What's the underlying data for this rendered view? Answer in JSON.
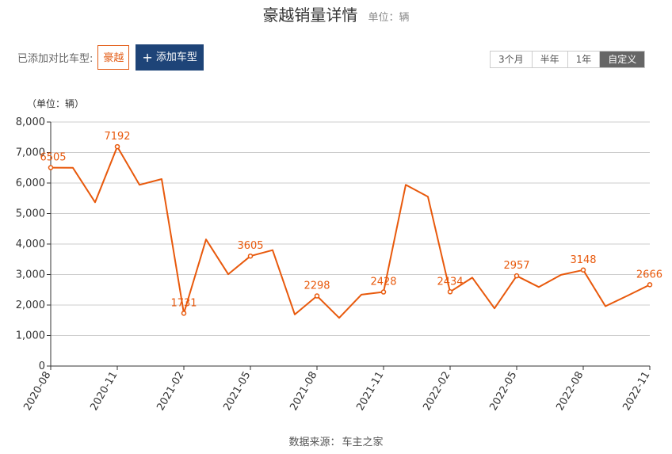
{
  "header": {
    "title": "豪越销量详情",
    "unit": "单位：辆"
  },
  "compare": {
    "label": "已添加对比车型:",
    "models": [
      "豪越"
    ],
    "add_label": "添加车型",
    "add_icon": "plus-icon"
  },
  "range_tabs": [
    {
      "label": "3个月",
      "active": false
    },
    {
      "label": "半年",
      "active": false
    },
    {
      "label": "1年",
      "active": false
    },
    {
      "label": "自定义",
      "active": true
    }
  ],
  "footer": {
    "source_label": "数据来源：",
    "source_value": "车主之家"
  },
  "colors": {
    "line": "#e8590c",
    "accent": "#1e4478",
    "grid": "#cccccc"
  },
  "chart_data": {
    "type": "line",
    "ylabel": "（单位：辆）",
    "ylim": [
      0,
      8000
    ],
    "yticks": [
      0,
      1000,
      2000,
      3000,
      4000,
      5000,
      6000,
      7000,
      8000
    ],
    "ytick_labels": [
      "0",
      "1,000",
      "2,000",
      "3,000",
      "4,000",
      "5,000",
      "6,000",
      "7,000",
      "8,000"
    ],
    "x": [
      "2020-08",
      "2020-09",
      "2020-10",
      "2020-11",
      "2020-12",
      "2021-01",
      "2021-02",
      "2021-03",
      "2021-04",
      "2021-05",
      "2021-06",
      "2021-07",
      "2021-08",
      "2021-09",
      "2021-10",
      "2021-11",
      "2021-12",
      "2022-01",
      "2022-02",
      "2022-03",
      "2022-04",
      "2022-05",
      "2022-06",
      "2022-07",
      "2022-08",
      "2022-09",
      "2022-10",
      "2022-11"
    ],
    "xtick_labels": [
      "2020-08",
      "2020-11",
      "2021-02",
      "2021-05",
      "2021-08",
      "2021-11",
      "2022-02",
      "2022-05",
      "2022-08",
      "2022-11"
    ],
    "xtick_step": 3,
    "values": [
      6505,
      6500,
      5370,
      7192,
      5940,
      6130,
      1731,
      4150,
      3010,
      3605,
      3800,
      1690,
      2298,
      1580,
      2340,
      2428,
      5940,
      5550,
      2434,
      2900,
      1890,
      2957,
      2590,
      2990,
      3148,
      1960,
      2310,
      2666
    ],
    "data_labels": [
      {
        "index": 0,
        "text": "6505"
      },
      {
        "index": 3,
        "text": "7192"
      },
      {
        "index": 6,
        "text": "1731"
      },
      {
        "index": 9,
        "text": "3605"
      },
      {
        "index": 12,
        "text": "2298"
      },
      {
        "index": 15,
        "text": "2428"
      },
      {
        "index": 18,
        "text": "2434"
      },
      {
        "index": 21,
        "text": "2957"
      },
      {
        "index": 24,
        "text": "3148"
      },
      {
        "index": 27,
        "text": "2666"
      }
    ],
    "grid": true
  }
}
